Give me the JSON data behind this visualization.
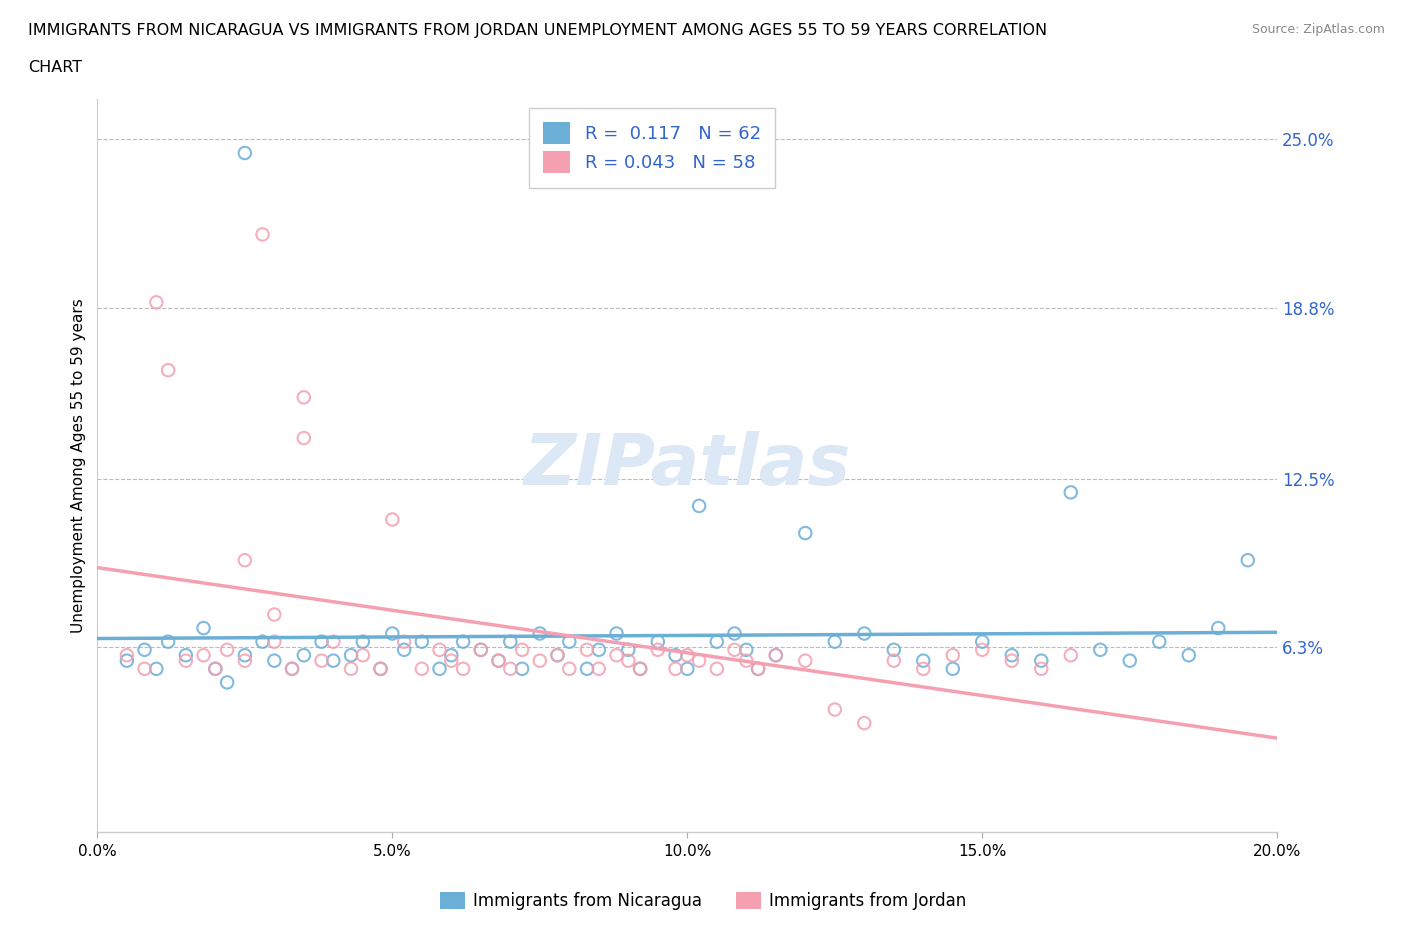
{
  "title_line1": "IMMIGRANTS FROM NICARAGUA VS IMMIGRANTS FROM JORDAN UNEMPLOYMENT AMONG AGES 55 TO 59 YEARS CORRELATION",
  "title_line2": "CHART",
  "source": "Source: ZipAtlas.com",
  "ylabel": "Unemployment Among Ages 55 to 59 years",
  "xlim": [
    0.0,
    0.2
  ],
  "ylim": [
    -0.005,
    0.265
  ],
  "xticks": [
    0.0,
    0.05,
    0.1,
    0.15,
    0.2
  ],
  "xtick_labels": [
    "0.0%",
    "5.0%",
    "10.0%",
    "15.0%",
    "20.0%"
  ],
  "ytick_labels_right": [
    "6.3%",
    "12.5%",
    "18.8%",
    "25.0%"
  ],
  "ytick_vals_right": [
    0.063,
    0.125,
    0.188,
    0.25
  ],
  "gridline_vals": [
    0.063,
    0.125,
    0.188,
    0.25
  ],
  "nicaragua_color": "#6baed6",
  "jordan_color": "#f4a0b0",
  "nicaragua_R": 0.117,
  "nicaragua_N": 62,
  "jordan_R": 0.043,
  "jordan_N": 58,
  "legend_R_color": "#3366cc",
  "watermark_color": "#dce8f5",
  "nicaragua_x": [
    0.025,
    0.005,
    0.008,
    0.01,
    0.012,
    0.015,
    0.018,
    0.02,
    0.022,
    0.025,
    0.028,
    0.03,
    0.033,
    0.035,
    0.038,
    0.04,
    0.043,
    0.045,
    0.048,
    0.05,
    0.052,
    0.055,
    0.058,
    0.06,
    0.062,
    0.065,
    0.068,
    0.07,
    0.072,
    0.075,
    0.078,
    0.08,
    0.083,
    0.085,
    0.088,
    0.09,
    0.092,
    0.095,
    0.098,
    0.1,
    0.102,
    0.105,
    0.108,
    0.11,
    0.112,
    0.115,
    0.12,
    0.125,
    0.13,
    0.135,
    0.14,
    0.145,
    0.15,
    0.155,
    0.16,
    0.165,
    0.17,
    0.175,
    0.18,
    0.185,
    0.19,
    0.195
  ],
  "nicaragua_y": [
    0.245,
    0.058,
    0.062,
    0.055,
    0.065,
    0.06,
    0.07,
    0.055,
    0.05,
    0.06,
    0.065,
    0.058,
    0.055,
    0.06,
    0.065,
    0.058,
    0.06,
    0.065,
    0.055,
    0.068,
    0.062,
    0.065,
    0.055,
    0.06,
    0.065,
    0.062,
    0.058,
    0.065,
    0.055,
    0.068,
    0.06,
    0.065,
    0.055,
    0.062,
    0.068,
    0.062,
    0.055,
    0.065,
    0.06,
    0.055,
    0.115,
    0.065,
    0.068,
    0.062,
    0.055,
    0.06,
    0.105,
    0.065,
    0.068,
    0.062,
    0.058,
    0.055,
    0.065,
    0.06,
    0.058,
    0.12,
    0.062,
    0.058,
    0.065,
    0.06,
    0.07,
    0.095
  ],
  "jordan_x": [
    0.005,
    0.008,
    0.01,
    0.012,
    0.015,
    0.018,
    0.02,
    0.022,
    0.025,
    0.028,
    0.03,
    0.033,
    0.035,
    0.038,
    0.04,
    0.043,
    0.045,
    0.048,
    0.05,
    0.052,
    0.055,
    0.058,
    0.06,
    0.062,
    0.065,
    0.068,
    0.07,
    0.072,
    0.075,
    0.078,
    0.08,
    0.083,
    0.085,
    0.088,
    0.09,
    0.092,
    0.095,
    0.098,
    0.1,
    0.102,
    0.105,
    0.108,
    0.11,
    0.112,
    0.115,
    0.12,
    0.125,
    0.13,
    0.135,
    0.14,
    0.145,
    0.15,
    0.155,
    0.16,
    0.165,
    0.025,
    0.03,
    0.035
  ],
  "jordan_y": [
    0.06,
    0.055,
    0.19,
    0.165,
    0.058,
    0.06,
    0.055,
    0.062,
    0.058,
    0.215,
    0.065,
    0.055,
    0.14,
    0.058,
    0.065,
    0.055,
    0.06,
    0.055,
    0.11,
    0.065,
    0.055,
    0.062,
    0.058,
    0.055,
    0.062,
    0.058,
    0.055,
    0.062,
    0.058,
    0.06,
    0.055,
    0.062,
    0.055,
    0.06,
    0.058,
    0.055,
    0.062,
    0.055,
    0.06,
    0.058,
    0.055,
    0.062,
    0.058,
    0.055,
    0.06,
    0.058,
    0.04,
    0.035,
    0.058,
    0.055,
    0.06,
    0.062,
    0.058,
    0.055,
    0.06,
    0.095,
    0.075,
    0.155
  ]
}
